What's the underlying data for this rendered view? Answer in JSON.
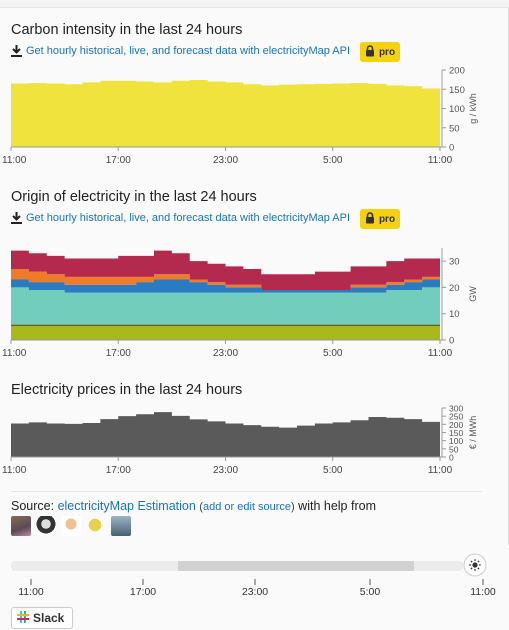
{
  "sections": {
    "carbon": {
      "title": "Carbon intensity in the last 24 hours",
      "api_text": "Get hourly historical, live, and forecast data with electricityMap API",
      "pro_label": "pro",
      "unit": "g / kWh"
    },
    "origin": {
      "title": "Origin of electricity in the last 24 hours",
      "api_text": "Get hourly historical, live, and forecast data with electricityMap API",
      "pro_label": "pro",
      "unit": "GW"
    },
    "prices": {
      "title": "Electricity prices in the last 24 hours",
      "unit": "€ / MWh"
    }
  },
  "source": {
    "prefix": "Source: ",
    "link": "electricityMap Estimation",
    "add_prefix": "(",
    "add_link": "add or edit source",
    "add_suffix": ")",
    "suffix": " with help from"
  },
  "timeline": {
    "labels": [
      "11:00",
      "17:00",
      "23:00",
      "5:00",
      "11:00"
    ]
  },
  "slack": {
    "label": "Slack"
  },
  "colors": {
    "carbon_fill": "#f0e33e",
    "price_fill": "#5a5a5a",
    "gas": "#b42a4f",
    "coal": "#ef7a28",
    "hydro": "#2b7bc0",
    "wind": "#72cdbd",
    "nuclear": "#a9b81a",
    "pro_badge": "#f5d10f",
    "link": "#1a73b8"
  },
  "chart_data": [
    {
      "type": "area",
      "title": "Carbon intensity in the last 24 hours",
      "ylabel": "g / kWh",
      "ylim": [
        0,
        200
      ],
      "yticks": [
        0,
        50,
        100,
        150,
        200
      ],
      "xticks": [
        "11:00",
        "17:00",
        "23:00",
        "5:00",
        "11:00"
      ],
      "values": [
        165,
        166,
        165,
        163,
        168,
        172,
        172,
        170,
        168,
        172,
        174,
        170,
        168,
        163,
        160,
        162,
        163,
        164,
        165,
        166,
        164,
        160,
        158,
        152
      ]
    },
    {
      "type": "area",
      "stacked": true,
      "title": "Origin of electricity in the last 24 hours",
      "ylabel": "GW",
      "ylim": [
        0,
        35
      ],
      "yticks": [
        0,
        10,
        20,
        30
      ],
      "xticks": [
        "11:00",
        "17:00",
        "23:00",
        "5:00",
        "11:00"
      ],
      "series": [
        {
          "values": [
            6,
            6,
            6,
            6,
            6,
            6,
            6,
            6,
            6,
            6,
            6,
            6,
            6,
            6,
            6,
            6,
            6,
            6,
            6,
            6,
            6,
            6,
            6,
            6
          ]
        },
        {
          "values": [
            14,
            13,
            13,
            12,
            12,
            12,
            12,
            12,
            12,
            12,
            12,
            12,
            12,
            12,
            12,
            12,
            12,
            12,
            12,
            12,
            12,
            13,
            13,
            14
          ]
        },
        {
          "values": [
            3,
            3,
            3,
            3,
            3,
            3,
            3,
            4,
            5,
            5,
            4,
            3,
            2,
            2,
            1,
            1,
            1,
            1,
            1,
            2,
            2,
            2,
            3,
            3
          ]
        },
        {
          "values": [
            4,
            4,
            3,
            3,
            3,
            3,
            3,
            2,
            2,
            2,
            1,
            1,
            1,
            1,
            0,
            0,
            0,
            0,
            0,
            1,
            1,
            1,
            1,
            1
          ]
        },
        {
          "values": [
            7,
            7,
            7,
            7,
            7,
            7,
            8,
            8,
            9,
            8,
            7,
            7,
            7,
            6,
            6,
            6,
            6,
            7,
            7,
            7,
            7,
            8,
            8,
            7
          ]
        }
      ]
    },
    {
      "type": "area",
      "title": "Electricity prices in the last 24 hours",
      "ylabel": "€ / MWh",
      "ylim": [
        0,
        300
      ],
      "yticks": [
        0,
        50,
        100,
        150,
        200,
        250,
        300
      ],
      "xticks": [
        "11:00",
        "17:00",
        "23:00",
        "5:00",
        "11:00"
      ],
      "values": [
        205,
        212,
        205,
        203,
        208,
        232,
        250,
        262,
        275,
        252,
        230,
        218,
        205,
        195,
        185,
        180,
        192,
        205,
        212,
        225,
        245,
        240,
        232,
        215
      ]
    }
  ]
}
